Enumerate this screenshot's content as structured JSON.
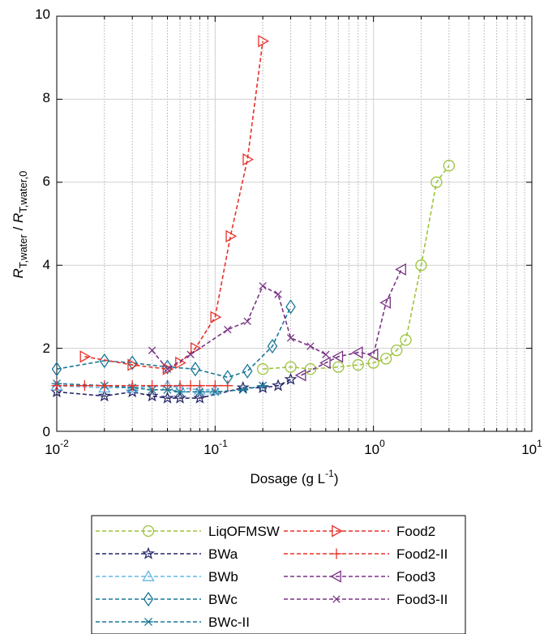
{
  "chart_data": {
    "type": "line",
    "xscale": "log",
    "xlim": [
      0.01,
      10
    ],
    "ylim": [
      0,
      10
    ],
    "grid": true,
    "legend_position": "bottom",
    "xlabel": {
      "main": "Dosage (g L",
      "sup": "-1",
      "end": ")"
    },
    "ylabel": {
      "r1": "R",
      "sub1": "T,water",
      "mid": " / ",
      "r2": "R",
      "sub2": "T,water,0"
    },
    "x_tick_labels": [
      {
        "base": "10",
        "exp": "-2"
      },
      {
        "base": "10",
        "exp": "-1"
      },
      {
        "base": "10",
        "exp": "0"
      },
      {
        "base": "10",
        "exp": "1"
      }
    ],
    "y_ticks": [
      0,
      2,
      4,
      6,
      8,
      10
    ],
    "y_tick_labels": [
      "0",
      "2",
      "4",
      "6",
      "8",
      "10"
    ],
    "series": [
      {
        "name": "LiqOFMSW",
        "color": "#9dc43a",
        "marker": "circle",
        "x": [
          0.2,
          0.3,
          0.4,
          0.6,
          0.8,
          1.0,
          1.2,
          1.4,
          1.6,
          2.0,
          2.5,
          3.0
        ],
        "y": [
          1.5,
          1.55,
          1.5,
          1.55,
          1.6,
          1.65,
          1.75,
          1.95,
          2.2,
          4.0,
          6.0,
          6.4
        ]
      },
      {
        "name": "BWa",
        "color": "#27276b",
        "marker": "star",
        "x": [
          0.01,
          0.02,
          0.03,
          0.04,
          0.05,
          0.06,
          0.08,
          0.15,
          0.2,
          0.25,
          0.3
        ],
        "y": [
          0.95,
          0.85,
          0.95,
          0.85,
          0.8,
          0.8,
          0.8,
          1.05,
          1.05,
          1.1,
          1.25
        ]
      },
      {
        "name": "BWb",
        "color": "#64b8e6",
        "marker": "triangle-up",
        "x": [
          0.01,
          0.02,
          0.03,
          0.05,
          0.06,
          0.08,
          0.1
        ],
        "y": [
          1.1,
          1.05,
          1.05,
          1.1,
          1.05,
          1.0,
          1.0
        ]
      },
      {
        "name": "BWc",
        "color": "#1a7896",
        "marker": "diamond",
        "x": [
          0.01,
          0.02,
          0.03,
          0.05,
          0.075,
          0.12,
          0.16,
          0.23,
          0.3
        ],
        "y": [
          1.5,
          1.7,
          1.65,
          1.55,
          1.5,
          1.3,
          1.45,
          2.05,
          3.0
        ]
      },
      {
        "name": "BWc-II",
        "color": "#1a7896",
        "marker": "asterisk",
        "x": [
          0.01,
          0.02,
          0.03,
          0.04,
          0.05,
          0.06,
          0.08,
          0.1,
          0.15,
          0.2
        ],
        "y": [
          1.15,
          1.1,
          1.05,
          1.0,
          1.0,
          0.95,
          0.95,
          0.95,
          1.0,
          1.1
        ]
      },
      {
        "name": "Food2",
        "color": "#e8312a",
        "marker": "triangle-right",
        "x": [
          0.015,
          0.03,
          0.05,
          0.06,
          0.075,
          0.1,
          0.125,
          0.16,
          0.2
        ],
        "y": [
          1.8,
          1.6,
          1.5,
          1.65,
          2.0,
          2.75,
          4.7,
          6.55,
          9.4
        ]
      },
      {
        "name": "Food2-II",
        "color": "#e8312a",
        "marker": "plus",
        "x": [
          0.01,
          0.015,
          0.02,
          0.03,
          0.04,
          0.05,
          0.06,
          0.07,
          0.08,
          0.1,
          0.12
        ],
        "y": [
          1.1,
          1.1,
          1.1,
          1.1,
          1.1,
          1.1,
          1.1,
          1.1,
          1.1,
          1.1,
          1.1
        ]
      },
      {
        "name": "Food3",
        "color": "#7a3485",
        "marker": "triangle-left",
        "x": [
          0.35,
          0.5,
          0.6,
          0.8,
          1.0,
          1.2,
          1.5
        ],
        "y": [
          1.35,
          1.65,
          1.8,
          1.9,
          1.85,
          3.1,
          3.9
        ]
      },
      {
        "name": "Food3-II",
        "color": "#7a3485",
        "marker": "cross",
        "x": [
          0.04,
          0.05,
          0.07,
          0.12,
          0.16,
          0.2,
          0.25,
          0.3,
          0.4,
          0.5
        ],
        "y": [
          1.95,
          1.5,
          1.85,
          2.45,
          2.65,
          3.5,
          3.3,
          2.25,
          2.05,
          1.85
        ]
      }
    ]
  }
}
